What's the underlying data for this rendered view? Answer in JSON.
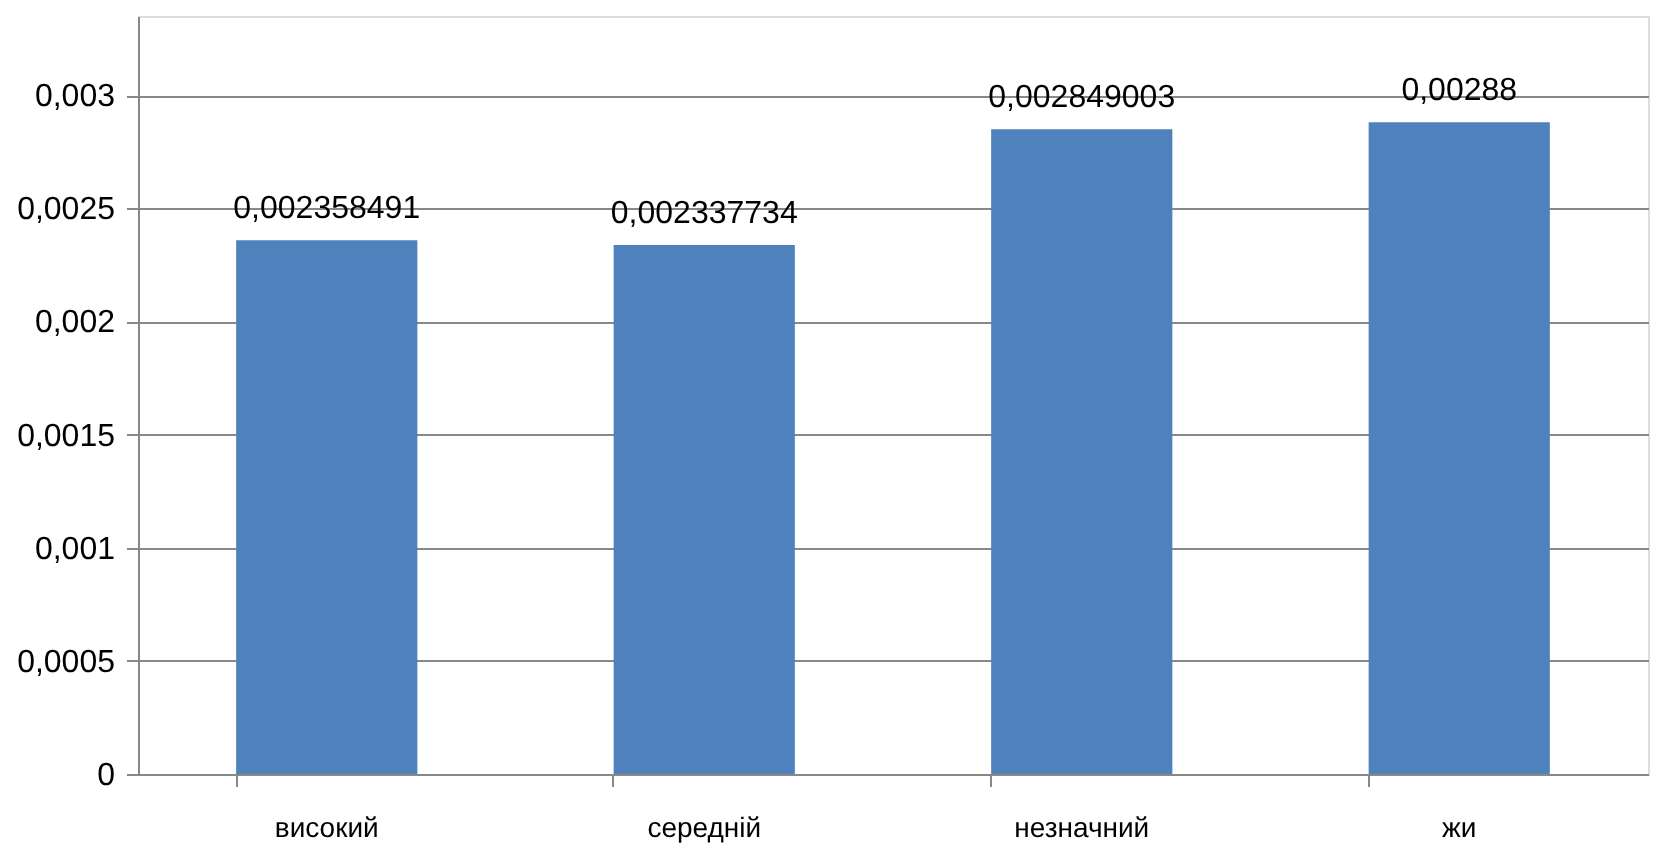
{
  "chart_data": {
    "type": "bar",
    "categories": [
      "високий",
      null,
      "середній",
      null,
      "незначний",
      null,
      "жи"
    ],
    "values": [
      0.002358491,
      null,
      0.002337734,
      null,
      0.002849003,
      null,
      0.00288
    ],
    "value_labels": [
      "0,002358491",
      null,
      "0,002337734",
      null,
      "0,002849003",
      null,
      "0,00288"
    ],
    "color": "#4f81bd",
    "ylim": [
      0,
      0.00335
    ],
    "yticks": [
      0,
      {
        "value": 0.0005,
        "label": "0,0005"
      },
      {
        "value": 0.001,
        "label": "0,001"
      },
      {
        "value": 0.0015,
        "label": "0,0015"
      },
      {
        "value": 0.002,
        "label": "0,002"
      },
      {
        "value": 0.0025,
        "label": "0,0025"
      },
      {
        "value": 0.003,
        "label": "0,003"
      }
    ],
    "grid": "y"
  }
}
